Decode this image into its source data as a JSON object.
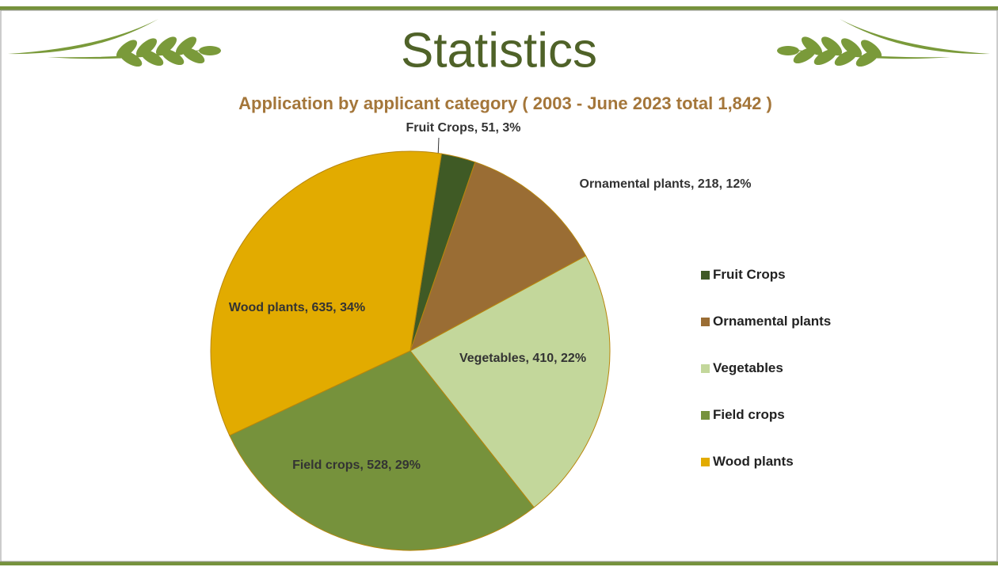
{
  "chart_data": {
    "type": "pie",
    "title": "Statistics",
    "subtitle": "Application by applicant category ( 2003 - June 2023 total 1,842 )",
    "categories": [
      "Fruit Crops",
      "Ornamental plants",
      "Vegetables",
      "Field crops",
      "Wood plants"
    ],
    "values": [
      51,
      218,
      410,
      528,
      635
    ],
    "value_labels": [
      "Fruit Crops, 51, 3%",
      "Ornamental plants, 218, 12%",
      "Vegetables, 410, 22%",
      "Field crops, 528, 29%",
      "Wood plants, 635, 34%"
    ],
    "colors": [
      "#3f5a25",
      "#9a6d34",
      "#c3d79b",
      "#76923c",
      "#e2ab00"
    ],
    "legend": "right"
  }
}
